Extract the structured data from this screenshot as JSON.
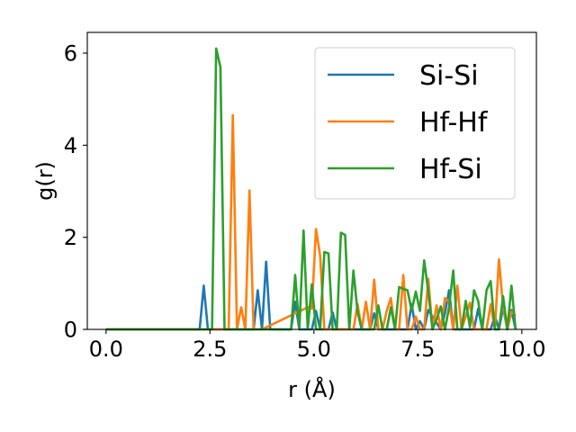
{
  "chart_data": {
    "type": "line",
    "xlabel": "r (Å)",
    "ylabel": "g(r)",
    "xlim": [
      -0.45,
      10.35
    ],
    "ylim": [
      0,
      6.45
    ],
    "xticks": [
      "0.0",
      "2.5",
      "5.0",
      "7.5",
      "10.0"
    ],
    "xtick_values": [
      0,
      2.5,
      5,
      7.5,
      10
    ],
    "yticks": [
      "0",
      "2",
      "4",
      "6"
    ],
    "ytick_values": [
      0,
      2,
      4,
      6
    ],
    "grid": false,
    "legend_position": "top-right",
    "series": [
      {
        "name": "Si-Si",
        "color": "#1f77b4",
        "x": [
          0.0,
          2.25,
          2.35,
          2.45,
          3.55,
          3.65,
          3.75,
          3.85,
          3.95,
          4.05,
          4.45,
          4.55,
          4.65,
          4.95,
          5.05,
          5.15,
          5.35,
          5.45,
          5.55,
          5.65,
          6.35,
          6.45,
          6.55,
          7.25,
          7.35,
          7.45,
          7.55,
          7.65,
          7.75,
          8.05,
          8.15,
          8.25,
          8.35,
          8.85,
          8.95,
          9.05,
          9.25,
          9.35,
          9.45,
          9.55,
          9.65,
          9.75,
          9.85
        ],
        "y": [
          0,
          0,
          0.95,
          0,
          0,
          0.85,
          0,
          1.47,
          0,
          0,
          0,
          0.6,
          0,
          0,
          0.4,
          0,
          0,
          0.37,
          0,
          0,
          0,
          0.35,
          0,
          0,
          0.55,
          0,
          0.18,
          0,
          0.42,
          0,
          0.35,
          0.85,
          0,
          0,
          0.45,
          0,
          0,
          0.3,
          0,
          0.48,
          0,
          0.42,
          0
        ]
      },
      {
        "name": "Hf-Hf",
        "color": "#ff7f0e",
        "x": [
          0.0,
          2.95,
          3.05,
          3.15,
          3.25,
          3.35,
          3.45,
          3.55,
          3.65,
          3.75,
          4.85,
          4.95,
          5.05,
          5.15,
          5.25,
          5.35,
          5.45,
          5.55,
          5.95,
          6.05,
          6.15,
          6.25,
          6.35,
          6.45,
          6.55,
          6.65,
          6.75,
          6.85,
          6.95,
          7.05,
          7.15,
          7.25,
          7.35,
          7.45,
          7.55,
          7.65,
          7.75,
          7.85,
          7.95,
          8.05,
          8.15,
          8.25,
          8.35,
          8.45,
          8.55,
          8.65,
          8.75,
          8.85,
          8.95,
          9.05,
          9.15,
          9.25,
          9.35,
          9.45,
          9.55,
          9.65,
          9.75,
          9.85
        ],
        "y": [
          0,
          0,
          4.65,
          0,
          0.48,
          0,
          3.02,
          0,
          0,
          0,
          0.48,
          0.45,
          2.18,
          1.6,
          0,
          0,
          0,
          0,
          0,
          0.55,
          0,
          0.6,
          0,
          1.08,
          0,
          0,
          0.4,
          0.68,
          0,
          0,
          1.18,
          0,
          0,
          0.28,
          0,
          0,
          1.1,
          0,
          0.52,
          0,
          0.68,
          0.6,
          0,
          0.95,
          0,
          0.28,
          0.58,
          0,
          0,
          0,
          0,
          0.55,
          0,
          1.52,
          0.48,
          0,
          0.38,
          0.3
        ]
      },
      {
        "name": "Hf-Si",
        "color": "#2ca02c",
        "x": [
          0.0,
          2.55,
          2.65,
          2.75,
          2.85,
          4.05,
          4.15,
          4.25,
          4.35,
          4.45,
          4.55,
          4.65,
          4.75,
          4.85,
          4.95,
          5.05,
          5.15,
          5.25,
          5.35,
          5.45,
          5.55,
          5.65,
          5.75,
          5.85,
          5.95,
          6.05,
          6.15,
          6.25,
          6.35,
          6.45,
          6.55,
          6.65,
          6.75,
          6.85,
          6.95,
          7.05,
          7.15,
          7.25,
          7.35,
          7.45,
          7.55,
          7.65,
          7.75,
          7.85,
          7.95,
          8.05,
          8.15,
          8.25,
          8.35,
          8.45,
          8.55,
          8.65,
          8.75,
          8.85,
          8.95,
          9.05,
          9.15,
          9.25,
          9.35,
          9.45,
          9.55,
          9.65,
          9.75,
          9.85
        ],
        "y": [
          0,
          0,
          6.1,
          5.7,
          0,
          0,
          0,
          0,
          0,
          0,
          1.18,
          0,
          2.15,
          0,
          0.98,
          0,
          0,
          1.68,
          1.65,
          0,
          0,
          2.1,
          2.05,
          0,
          1.28,
          0.38,
          0,
          0,
          0,
          0,
          0.52,
          0,
          0,
          0.48,
          0,
          0.92,
          0.88,
          0.85,
          0.4,
          0.82,
          0.4,
          1.5,
          0.82,
          0,
          0.22,
          0.5,
          0,
          0.48,
          1.28,
          0,
          0,
          0.62,
          0.05,
          0.85,
          0.62,
          0,
          0.85,
          1.05,
          0,
          0,
          0.72,
          0,
          0.95,
          0
        ]
      }
    ]
  }
}
